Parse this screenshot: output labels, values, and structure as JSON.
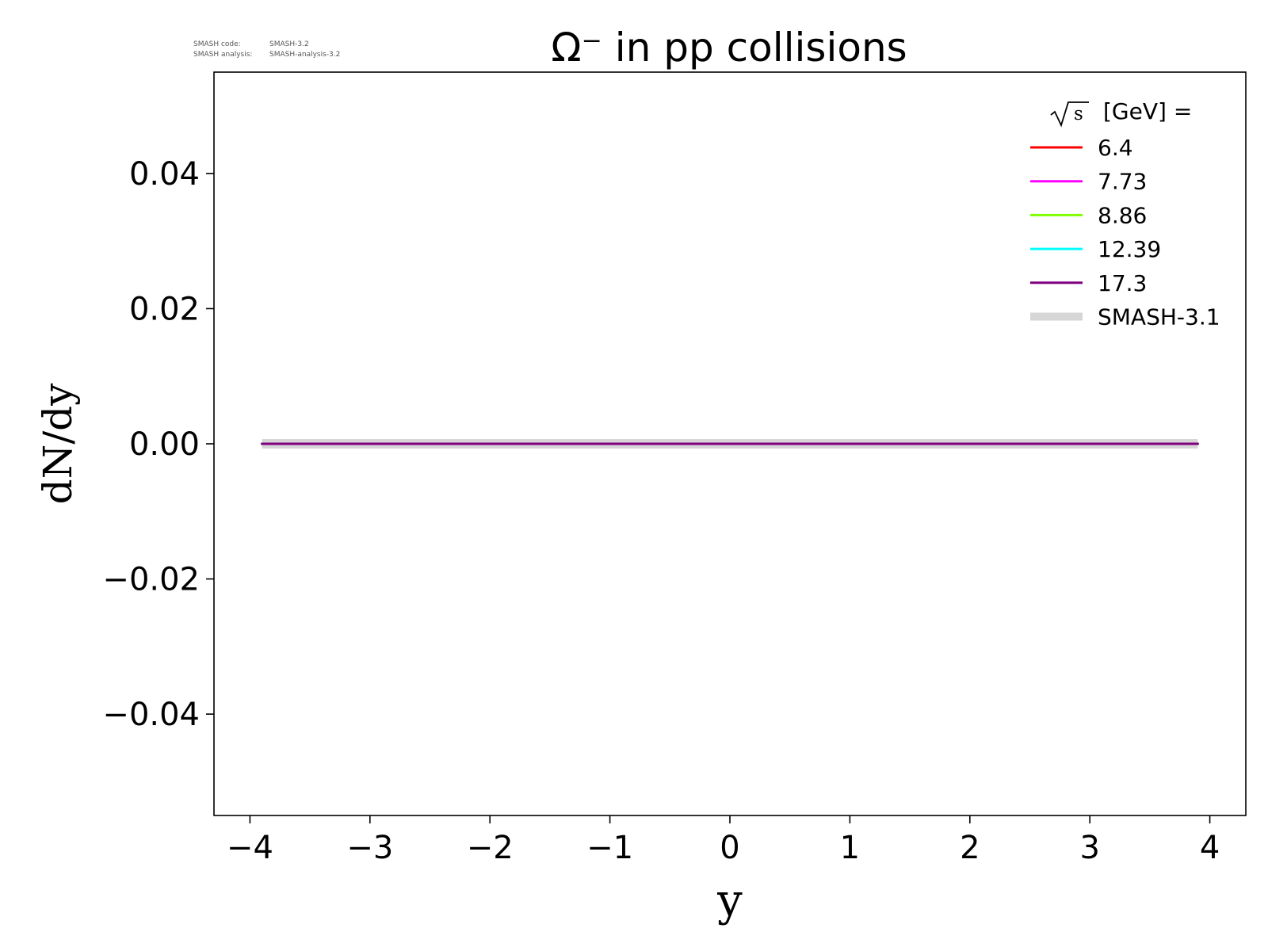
{
  "version_note": {
    "code_label": "SMASH code:",
    "code_value": "SMASH-3.2",
    "analysis_label": "SMASH analysis:",
    "analysis_value": "SMASH-analysis-3.2"
  },
  "chart_data": {
    "type": "line",
    "title": "Ω⁻ in pp collisions",
    "xlabel": "y",
    "ylabel": "dN/dy",
    "xlim": [
      -4.3,
      4.3
    ],
    "ylim": [
      -0.055,
      0.055
    ],
    "xticks": [
      -4,
      -3,
      -2,
      -1,
      0,
      1,
      2,
      3,
      4
    ],
    "yticks": [
      -0.04,
      -0.02,
      0.0,
      0.02,
      0.04
    ],
    "xtick_labels": [
      "−4",
      "−3",
      "−2",
      "−1",
      "0",
      "1",
      "2",
      "3",
      "4"
    ],
    "ytick_labels": [
      "−0.04",
      "−0.02",
      "0.00",
      "0.02",
      "0.04"
    ],
    "grid": false,
    "legend": {
      "placement": "top-right",
      "title_sqrt": "s",
      "title_text": "[GeV] ="
    },
    "series": [
      {
        "name": "SMASH-3.1",
        "color": "#c8c8c8",
        "style": "reference",
        "x": [
          -3.9,
          -2.9,
          -1.9,
          -0.9,
          0.1,
          1.1,
          2.1,
          3.1,
          3.9
        ],
        "y": [
          0,
          0,
          0,
          0,
          0,
          0,
          0,
          0,
          0
        ]
      },
      {
        "name": "6.4",
        "color": "#ff0000",
        "style": "line",
        "x": [
          -3.9,
          -2.9,
          -1.9,
          -0.9,
          0.1,
          1.1,
          2.1,
          3.1,
          3.9
        ],
        "y": [
          0,
          0,
          0,
          0,
          0,
          0,
          0,
          0,
          0
        ]
      },
      {
        "name": "7.73",
        "color": "#ff00ff",
        "style": "line",
        "x": [
          -3.9,
          -2.9,
          -1.9,
          -0.9,
          0.1,
          1.1,
          2.1,
          3.1,
          3.9
        ],
        "y": [
          0,
          0,
          0,
          0,
          0,
          0,
          0,
          0,
          0
        ]
      },
      {
        "name": "8.86",
        "color": "#7fff00",
        "style": "line",
        "x": [
          -3.9,
          -2.9,
          -1.9,
          -0.9,
          0.1,
          1.1,
          2.1,
          3.1,
          3.9
        ],
        "y": [
          0,
          0,
          0,
          0,
          0,
          0,
          0,
          0,
          0
        ]
      },
      {
        "name": "12.39",
        "color": "#00ffff",
        "style": "line",
        "x": [
          -3.9,
          -2.9,
          -1.9,
          -0.9,
          0.1,
          1.1,
          2.1,
          3.1,
          3.9
        ],
        "y": [
          0,
          0,
          0,
          0,
          0,
          0,
          0,
          0,
          0
        ]
      },
      {
        "name": "17.3",
        "color": "#800080",
        "style": "line",
        "x": [
          -3.9,
          -2.9,
          -1.9,
          -0.9,
          0.1,
          1.1,
          2.1,
          3.1,
          3.9
        ],
        "y": [
          0,
          0,
          0,
          0,
          0,
          0,
          0,
          0,
          0
        ]
      }
    ],
    "legend_order": [
      "6.4",
      "7.73",
      "8.86",
      "12.39",
      "17.3",
      "SMASH-3.1"
    ]
  }
}
